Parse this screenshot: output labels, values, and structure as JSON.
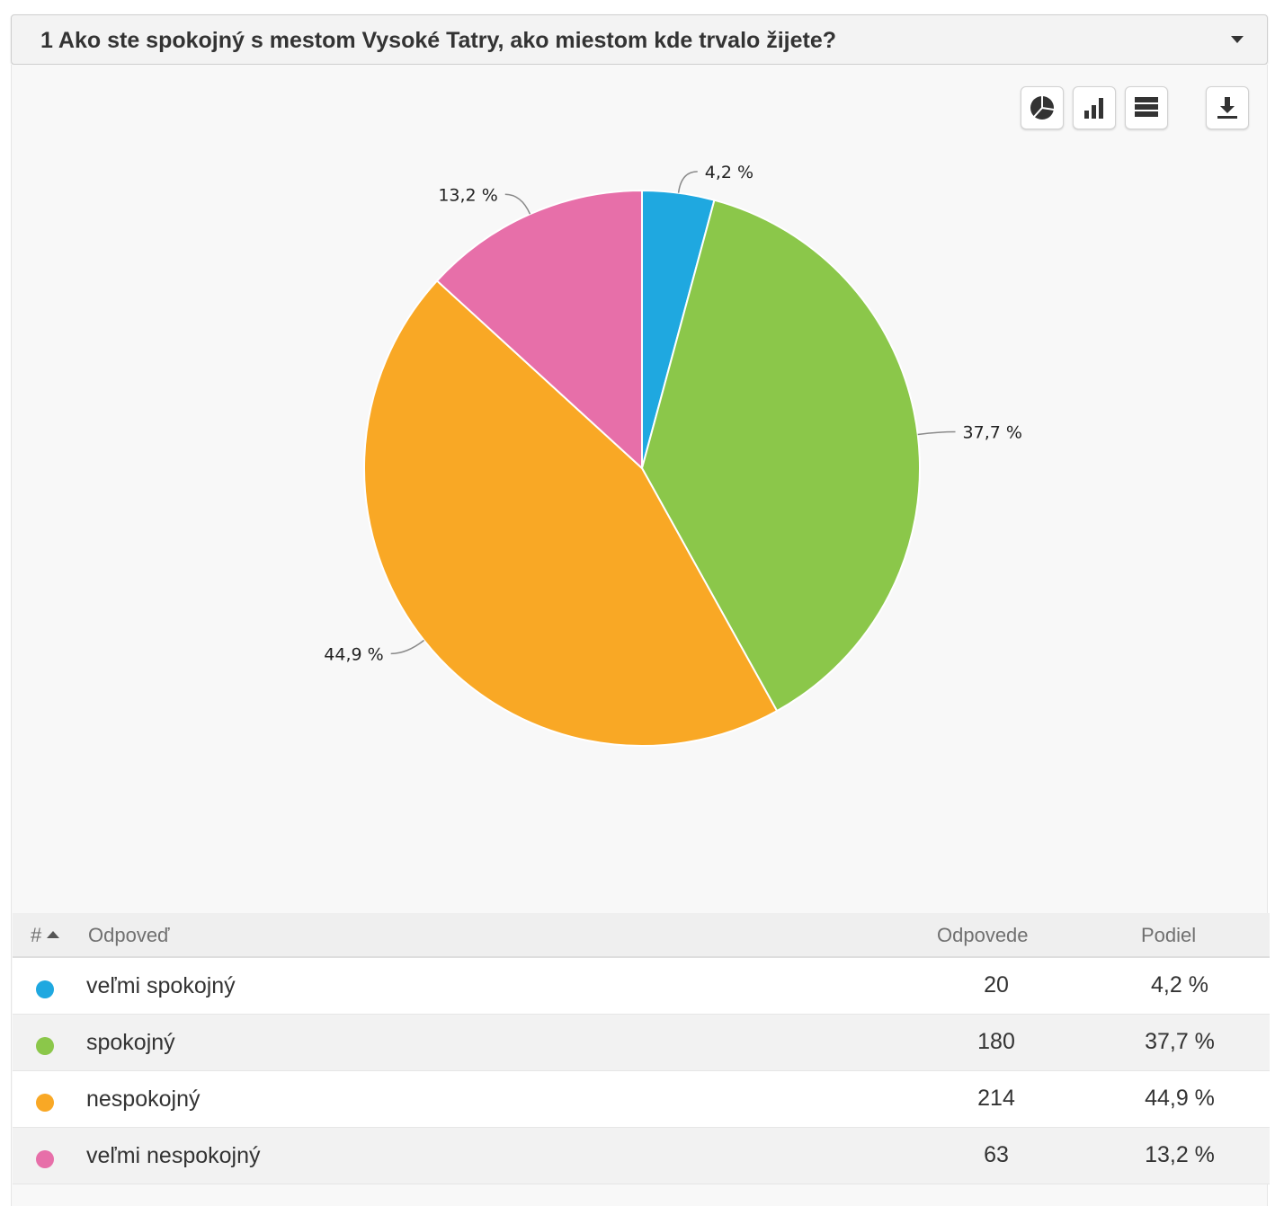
{
  "question": {
    "title": "1 Ako ste spokojný s mestom Vysoké Tatry, ako miestom kde trvalo žijete?"
  },
  "toolbar": {
    "buttons": [
      {
        "name": "pie-chart-view-button",
        "icon": "pie-chart-icon"
      },
      {
        "name": "bar-chart-view-button",
        "icon": "bar-chart-icon"
      },
      {
        "name": "table-view-button",
        "icon": "table-icon"
      },
      {
        "name": "download-button",
        "icon": "download-icon"
      }
    ]
  },
  "chart_data": {
    "type": "pie",
    "start_angle_deg": 0,
    "direction": "clockwise",
    "labels": [
      "veľmi spokojný",
      "spokojný",
      "nespokojný",
      "veľmi nespokojný"
    ],
    "values": [
      20,
      180,
      214,
      63
    ],
    "percent_labels": [
      "4,2 %",
      "37,7 %",
      "44,9 %",
      "13,2 %"
    ],
    "colors": [
      "#1fa8e0",
      "#8bc74a",
      "#f9a825",
      "#e76fa9"
    ]
  },
  "table": {
    "headers": {
      "index": "#",
      "answer": "Odpoveď",
      "count": "Odpovede",
      "share": "Podiel"
    },
    "rows": [
      {
        "answer": "veľmi spokojný",
        "count": "20",
        "share": "4,2 %",
        "color": "#1fa8e0"
      },
      {
        "answer": "spokojný",
        "count": "180",
        "share": "37,7 %",
        "color": "#8bc74a"
      },
      {
        "answer": "nespokojný",
        "count": "214",
        "share": "44,9 %",
        "color": "#f9a825"
      },
      {
        "answer": "veľmi nespokojný",
        "count": "63",
        "share": "13,2 %",
        "color": "#e76fa9"
      }
    ]
  }
}
